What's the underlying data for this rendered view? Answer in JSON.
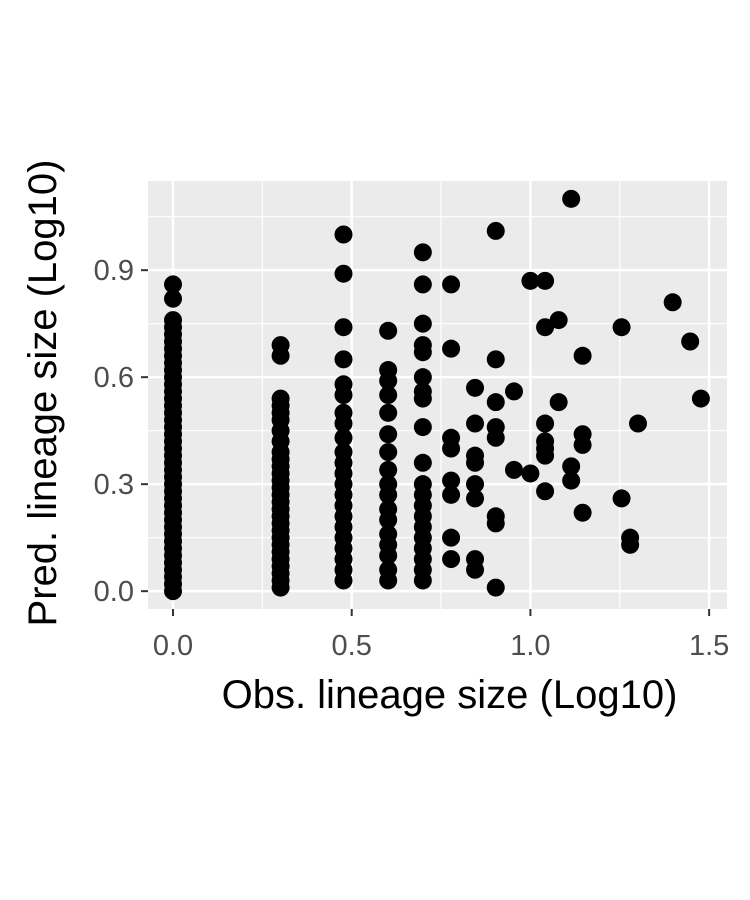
{
  "chart_data": {
    "type": "scatter",
    "xlabel": "Obs. lineage size (Log10)",
    "ylabel": "Pred. lineage size (Log10)",
    "xlim": [
      -0.07,
      1.55
    ],
    "ylim": [
      -0.05,
      1.15
    ],
    "x_ticks": [
      0.0,
      0.5,
      1.0,
      1.5
    ],
    "x_tick_labels": [
      "0.0",
      "0.5",
      "1.0",
      "1.5"
    ],
    "y_ticks": [
      0.0,
      0.3,
      0.6,
      0.9
    ],
    "y_tick_labels": [
      "0.0",
      "0.3",
      "0.6",
      "0.9"
    ],
    "grid": true,
    "colors": {
      "panel": "#ebebeb",
      "grid": "#ffffff",
      "point": "#000000",
      "tick": "#333333"
    },
    "points": [
      [
        0,
        0.0
      ],
      [
        0,
        0.02
      ],
      [
        0,
        0.04
      ],
      [
        0,
        0.06
      ],
      [
        0,
        0.08
      ],
      [
        0,
        0.1
      ],
      [
        0,
        0.12
      ],
      [
        0,
        0.14
      ],
      [
        0,
        0.16
      ],
      [
        0,
        0.18
      ],
      [
        0,
        0.2
      ],
      [
        0,
        0.22
      ],
      [
        0,
        0.24
      ],
      [
        0,
        0.26
      ],
      [
        0,
        0.28
      ],
      [
        0,
        0.3
      ],
      [
        0,
        0.32
      ],
      [
        0,
        0.34
      ],
      [
        0,
        0.36
      ],
      [
        0,
        0.38
      ],
      [
        0,
        0.4
      ],
      [
        0,
        0.42
      ],
      [
        0,
        0.44
      ],
      [
        0,
        0.46
      ],
      [
        0,
        0.48
      ],
      [
        0,
        0.5
      ],
      [
        0,
        0.52
      ],
      [
        0,
        0.54
      ],
      [
        0,
        0.56
      ],
      [
        0,
        0.58
      ],
      [
        0,
        0.6
      ],
      [
        0,
        0.62
      ],
      [
        0,
        0.64
      ],
      [
        0,
        0.66
      ],
      [
        0,
        0.68
      ],
      [
        0,
        0.7
      ],
      [
        0,
        0.72
      ],
      [
        0,
        0.74
      ],
      [
        0,
        0.76
      ],
      [
        0,
        0.82
      ],
      [
        0,
        0.86
      ],
      [
        0.301,
        0.01
      ],
      [
        0.301,
        0.03
      ],
      [
        0.301,
        0.05
      ],
      [
        0.301,
        0.07
      ],
      [
        0.301,
        0.09
      ],
      [
        0.301,
        0.11
      ],
      [
        0.301,
        0.13
      ],
      [
        0.301,
        0.15
      ],
      [
        0.301,
        0.17
      ],
      [
        0.301,
        0.19
      ],
      [
        0.301,
        0.21
      ],
      [
        0.301,
        0.23
      ],
      [
        0.301,
        0.25
      ],
      [
        0.301,
        0.27
      ],
      [
        0.301,
        0.29
      ],
      [
        0.301,
        0.31
      ],
      [
        0.301,
        0.33
      ],
      [
        0.301,
        0.35
      ],
      [
        0.301,
        0.37
      ],
      [
        0.301,
        0.39
      ],
      [
        0.301,
        0.42
      ],
      [
        0.301,
        0.45
      ],
      [
        0.301,
        0.48
      ],
      [
        0.301,
        0.5
      ],
      [
        0.301,
        0.52
      ],
      [
        0.301,
        0.54
      ],
      [
        0.301,
        0.66
      ],
      [
        0.301,
        0.69
      ],
      [
        0.477,
        0.03
      ],
      [
        0.477,
        0.06
      ],
      [
        0.477,
        0.09
      ],
      [
        0.477,
        0.12
      ],
      [
        0.477,
        0.15
      ],
      [
        0.477,
        0.18
      ],
      [
        0.477,
        0.21
      ],
      [
        0.477,
        0.24
      ],
      [
        0.477,
        0.27
      ],
      [
        0.477,
        0.3
      ],
      [
        0.477,
        0.33
      ],
      [
        0.477,
        0.36
      ],
      [
        0.477,
        0.39
      ],
      [
        0.477,
        0.43
      ],
      [
        0.477,
        0.47
      ],
      [
        0.477,
        0.5
      ],
      [
        0.477,
        0.55
      ],
      [
        0.477,
        0.58
      ],
      [
        0.477,
        0.65
      ],
      [
        0.477,
        0.74
      ],
      [
        0.477,
        0.89
      ],
      [
        0.477,
        1.0
      ],
      [
        0.602,
        0.03
      ],
      [
        0.602,
        0.06
      ],
      [
        0.602,
        0.1
      ],
      [
        0.602,
        0.13
      ],
      [
        0.602,
        0.16
      ],
      [
        0.602,
        0.2
      ],
      [
        0.602,
        0.23
      ],
      [
        0.602,
        0.27
      ],
      [
        0.602,
        0.3
      ],
      [
        0.602,
        0.34
      ],
      [
        0.602,
        0.39
      ],
      [
        0.602,
        0.44
      ],
      [
        0.602,
        0.5
      ],
      [
        0.602,
        0.55
      ],
      [
        0.602,
        0.59
      ],
      [
        0.602,
        0.62
      ],
      [
        0.602,
        0.73
      ],
      [
        0.699,
        0.03
      ],
      [
        0.699,
        0.06
      ],
      [
        0.699,
        0.09
      ],
      [
        0.699,
        0.12
      ],
      [
        0.699,
        0.15
      ],
      [
        0.699,
        0.18
      ],
      [
        0.699,
        0.21
      ],
      [
        0.699,
        0.24
      ],
      [
        0.699,
        0.27
      ],
      [
        0.699,
        0.3
      ],
      [
        0.699,
        0.36
      ],
      [
        0.699,
        0.46
      ],
      [
        0.699,
        0.54
      ],
      [
        0.699,
        0.56
      ],
      [
        0.699,
        0.6
      ],
      [
        0.699,
        0.67
      ],
      [
        0.699,
        0.69
      ],
      [
        0.699,
        0.75
      ],
      [
        0.699,
        0.86
      ],
      [
        0.699,
        0.95
      ],
      [
        0.778,
        0.09
      ],
      [
        0.778,
        0.15
      ],
      [
        0.778,
        0.27
      ],
      [
        0.778,
        0.31
      ],
      [
        0.778,
        0.4
      ],
      [
        0.778,
        0.43
      ],
      [
        0.778,
        0.68
      ],
      [
        0.778,
        0.86
      ],
      [
        0.845,
        0.06
      ],
      [
        0.845,
        0.09
      ],
      [
        0.845,
        0.26
      ],
      [
        0.845,
        0.3
      ],
      [
        0.845,
        0.36
      ],
      [
        0.845,
        0.38
      ],
      [
        0.845,
        0.47
      ],
      [
        0.845,
        0.57
      ],
      [
        0.903,
        0.01
      ],
      [
        0.903,
        0.19
      ],
      [
        0.903,
        0.21
      ],
      [
        0.903,
        0.43
      ],
      [
        0.903,
        0.46
      ],
      [
        0.903,
        0.53
      ],
      [
        0.903,
        0.65
      ],
      [
        0.903,
        1.01
      ],
      [
        0.954,
        0.34
      ],
      [
        0.954,
        0.56
      ],
      [
        1.0,
        0.33
      ],
      [
        1.0,
        0.87
      ],
      [
        1.041,
        0.28
      ],
      [
        1.041,
        0.38
      ],
      [
        1.041,
        0.4
      ],
      [
        1.041,
        0.42
      ],
      [
        1.041,
        0.47
      ],
      [
        1.041,
        0.74
      ],
      [
        1.041,
        0.87
      ],
      [
        1.079,
        0.53
      ],
      [
        1.079,
        0.76
      ],
      [
        1.114,
        0.31
      ],
      [
        1.114,
        0.35
      ],
      [
        1.114,
        1.1
      ],
      [
        1.146,
        0.22
      ],
      [
        1.146,
        0.41
      ],
      [
        1.146,
        0.44
      ],
      [
        1.146,
        0.66
      ],
      [
        1.255,
        0.26
      ],
      [
        1.255,
        0.74
      ],
      [
        1.279,
        0.13
      ],
      [
        1.279,
        0.15
      ],
      [
        1.301,
        0.47
      ],
      [
        1.398,
        0.81
      ],
      [
        1.447,
        0.7
      ],
      [
        1.477,
        0.54
      ]
    ]
  }
}
